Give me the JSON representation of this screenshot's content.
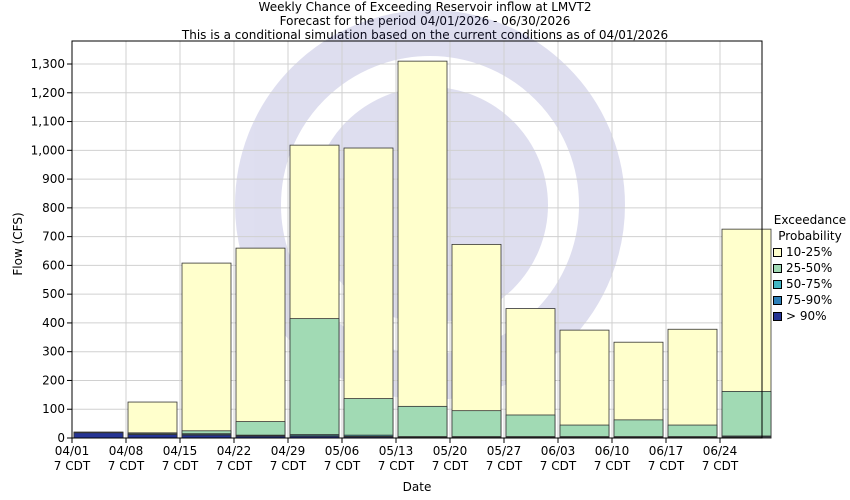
{
  "chart_data": {
    "type": "bar",
    "title": "Weekly Chance of Exceeding Reservoir inflow at LMVT2",
    "subtitle": "Forecast for the period 04/01/2026 - 06/30/2026",
    "subtitle2": "This is a conditional simulation based on the current conditions as of 04/01/2026",
    "xlabel": "Date",
    "ylabel": "Flow (CFS)",
    "ylim": [
      0,
      1380
    ],
    "yticks": [
      0,
      100,
      200,
      300,
      400,
      500,
      600,
      700,
      800,
      900,
      1000,
      1100,
      1200,
      1300
    ],
    "ytick_labels": [
      "0",
      "100",
      "200",
      "300",
      "400",
      "500",
      "600",
      "700",
      "800",
      "900",
      "1,000",
      "1,100",
      "1,200",
      "1,300"
    ],
    "categories": [
      "04/01\n7 CDT",
      "04/08\n7 CDT",
      "04/15\n7 CDT",
      "04/22\n7 CDT",
      "04/29\n7 CDT",
      "05/06\n7 CDT",
      "05/13\n7 CDT",
      "05/20\n7 CDT",
      "05/27\n7 CDT",
      "06/03\n7 CDT",
      "06/10\n7 CDT",
      "06/17\n7 CDT",
      "06/24\n7 CDT"
    ],
    "legend": {
      "title": "Exceedance\nProbability",
      "placement": "right"
    },
    "series": [
      {
        "name": "10-25%",
        "color": "#ffffcc",
        "values": [
          20,
          125,
          608,
          660,
          1018,
          1008,
          1310,
          673,
          450,
          375,
          333,
          378,
          726
        ]
      },
      {
        "name": "25-50%",
        "color": "#a1dab4",
        "values": [
          20,
          18,
          25,
          57,
          415,
          137,
          110,
          95,
          80,
          45,
          63,
          45,
          162
        ]
      },
      {
        "name": "50-75%",
        "color": "#41b6c4",
        "values": [
          20,
          15,
          15,
          10,
          12,
          10,
          5,
          5,
          5,
          5,
          5,
          5,
          7
        ]
      },
      {
        "name": "75-90%",
        "color": "#2c7fb8",
        "values": [
          20,
          14,
          12,
          8,
          8,
          6,
          4,
          4,
          4,
          4,
          4,
          4,
          5
        ]
      },
      {
        "name": "> 90%",
        "color": "#253494",
        "values": [
          18,
          12,
          10,
          6,
          6,
          4,
          3,
          3,
          3,
          3,
          3,
          3,
          3
        ]
      }
    ]
  }
}
